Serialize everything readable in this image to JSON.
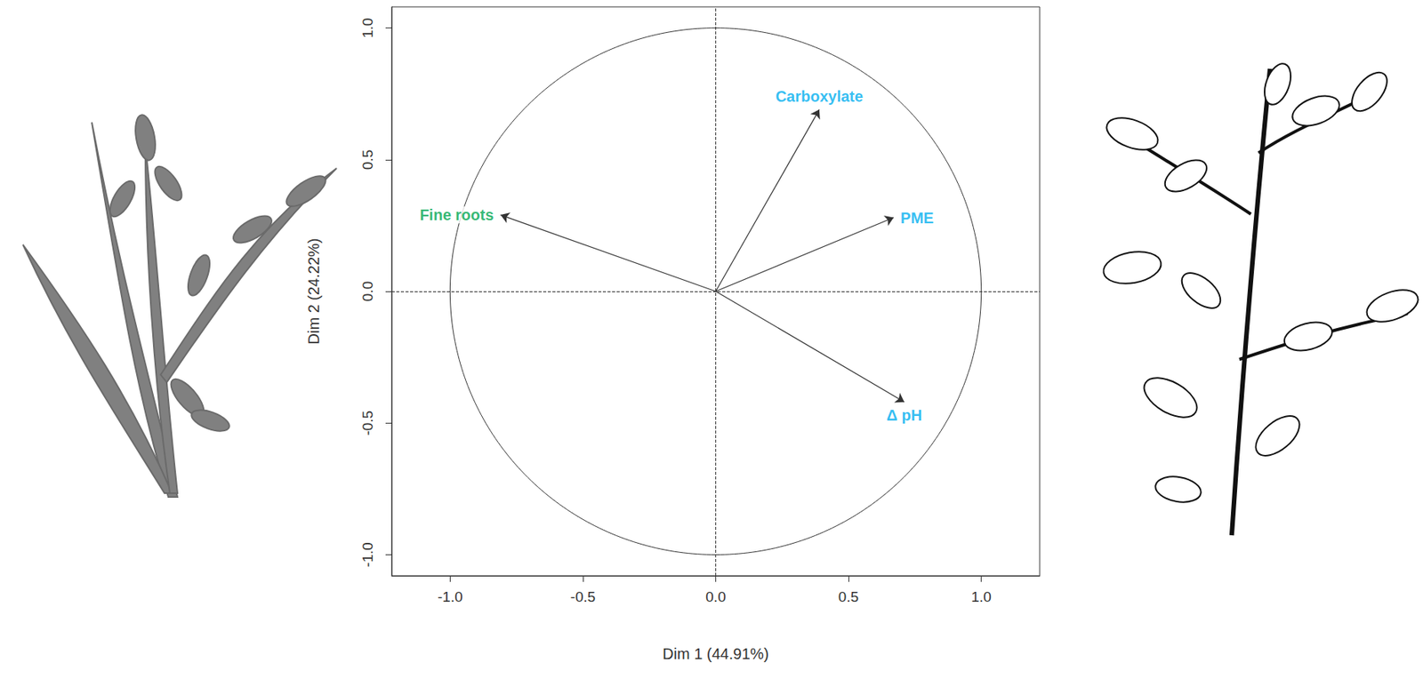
{
  "chart_data": {
    "type": "vector",
    "xlabel": "Dim 1 (44.91%)",
    "ylabel": "Dim 2 (24.22%)",
    "xlim": [
      -1.22,
      1.22
    ],
    "ylim": [
      -1.08,
      1.08
    ],
    "xticks": [
      {
        "value": -1,
        "label": "-1.0"
      },
      {
        "value": -0.5,
        "label": "-0.5"
      },
      {
        "value": 0,
        "label": "0.0"
      },
      {
        "value": 0.5,
        "label": "0.5"
      },
      {
        "value": 1,
        "label": "1.0"
      }
    ],
    "yticks": [
      {
        "value": -1,
        "label": "-1.0"
      },
      {
        "value": -0.5,
        "label": "-0.5"
      },
      {
        "value": 0,
        "label": "0.0"
      },
      {
        "value": 0.5,
        "label": "0.5"
      },
      {
        "value": 1,
        "label": "1.0"
      }
    ],
    "grid": false,
    "series": [
      {
        "name": "Fine roots",
        "x": -0.81,
        "y": 0.29,
        "color": "#00a651"
      },
      {
        "name": "Carboxylate",
        "x": 0.39,
        "y": 0.69,
        "color": "#00aeef"
      },
      {
        "name": "PME",
        "x": 0.67,
        "y": 0.28,
        "color": "#00aeef"
      },
      {
        "name": "Δ pH",
        "x": 0.71,
        "y": -0.42,
        "color": "#00aeef"
      }
    ]
  }
}
